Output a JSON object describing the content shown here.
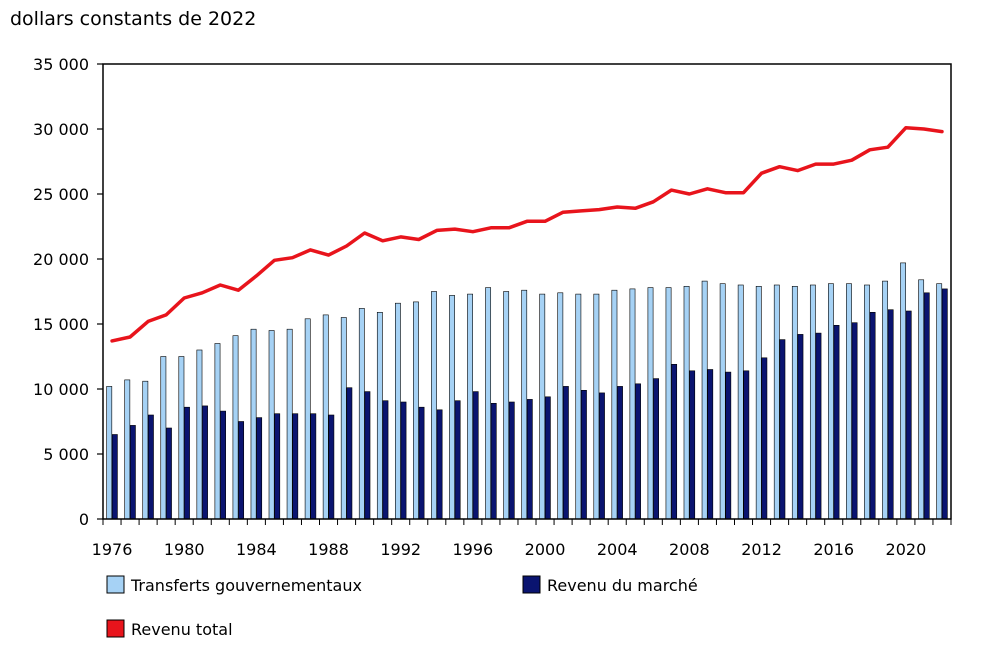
{
  "colors": {
    "transfers": "#a6d2f5",
    "market": "#0a1470",
    "total": "#e8141c",
    "outline": "#000000"
  },
  "chart_data": {
    "type": "bar",
    "unit_label": "dollars constants de 2022",
    "ylim": [
      0,
      35000
    ],
    "y_ticks": [
      {
        "value": 0,
        "label": "0"
      },
      {
        "value": 5000,
        "label": "5 000"
      },
      {
        "value": 10000,
        "label": "10 000"
      },
      {
        "value": 15000,
        "label": "15 000"
      },
      {
        "value": 20000,
        "label": "20 000"
      },
      {
        "value": 25000,
        "label": "25 000"
      },
      {
        "value": 30000,
        "label": "30 000"
      },
      {
        "value": 35000,
        "label": "35 000"
      }
    ],
    "categories": [
      1976,
      1977,
      1978,
      1979,
      1980,
      1981,
      1982,
      1983,
      1984,
      1985,
      1986,
      1987,
      1988,
      1989,
      1990,
      1991,
      1992,
      1993,
      1994,
      1995,
      1996,
      1997,
      1998,
      1999,
      2000,
      2001,
      2002,
      2003,
      2004,
      2005,
      2006,
      2007,
      2008,
      2009,
      2010,
      2011,
      2012,
      2013,
      2014,
      2015,
      2016,
      2017,
      2018,
      2019,
      2020,
      2021,
      2022
    ],
    "x_tick_labels": [
      "1976",
      "1980",
      "1984",
      "1988",
      "1992",
      "1996",
      "2000",
      "2004",
      "2008",
      "2012",
      "2016",
      "2020"
    ],
    "grid": false,
    "legend_position": "bottom",
    "series": [
      {
        "name": "Transferts gouvernementaux",
        "kind": "bar",
        "color_key": "transfers",
        "values": [
          10200,
          10700,
          10600,
          12500,
          12500,
          13000,
          13500,
          14100,
          14600,
          14500,
          14600,
          15400,
          15700,
          15500,
          16200,
          15900,
          16600,
          16700,
          17500,
          17200,
          17300,
          17800,
          17500,
          17600,
          17300,
          17400,
          17300,
          17300,
          17600,
          17700,
          17800,
          17800,
          17900,
          18300,
          18100,
          18000,
          17900,
          18000,
          17900,
          18000,
          18100,
          18100,
          18000,
          18300,
          19700,
          18400,
          18100
        ]
      },
      {
        "name": "Revenu du marché",
        "kind": "bar",
        "color_key": "market",
        "values": [
          6500,
          7200,
          8000,
          7000,
          8600,
          8700,
          8300,
          7500,
          7800,
          8100,
          8100,
          8100,
          8000,
          10100,
          9800,
          9100,
          9000,
          8600,
          8400,
          9100,
          9800,
          8900,
          9000,
          9200,
          9400,
          10200,
          9900,
          9700,
          10200,
          10400,
          10800,
          11900,
          11400,
          11500,
          11300,
          11400,
          12400,
          13800,
          14200,
          14300,
          14900,
          15100,
          15900,
          16100,
          16000,
          17400,
          17700
        ]
      },
      {
        "name": "Revenu total",
        "kind": "line",
        "color_key": "total",
        "values": [
          13700,
          14000,
          15200,
          15700,
          17000,
          17400,
          18000,
          17600,
          18700,
          19900,
          20100,
          20700,
          20300,
          21000,
          22000,
          21400,
          21700,
          21500,
          22200,
          22300,
          22100,
          22400,
          22400,
          22900,
          22900,
          23600,
          23700,
          23800,
          24000,
          23900,
          24400,
          25300,
          25000,
          25400,
          25100,
          25100,
          26600,
          27100,
          26800,
          27300,
          27300,
          27600,
          28400,
          28600,
          30100,
          30000,
          29800
        ]
      }
    ]
  }
}
